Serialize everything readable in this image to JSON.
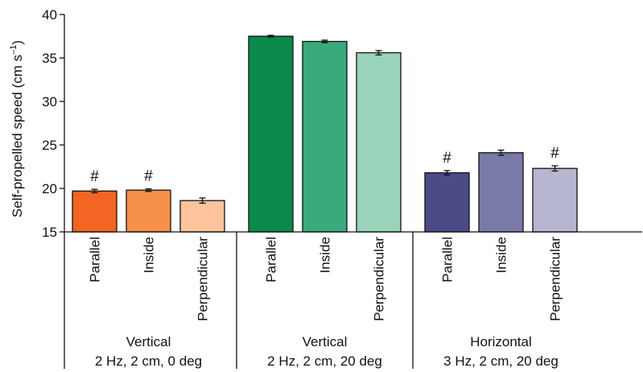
{
  "chart_data": {
    "type": "bar",
    "ylabel": "Self-propelled speed (cm s",
    "ylabel_sup": "–1",
    "ylabel_close": ")",
    "ylim": [
      15,
      40
    ],
    "yticks": [
      15,
      20,
      25,
      30,
      35,
      40
    ],
    "annotation_symbol": "#",
    "groups": [
      {
        "label_line1": "Vertical",
        "label_line2": "2 Hz, 2 cm, 0 deg",
        "bars": [
          {
            "category": "Parallel",
            "value": 19.7,
            "error": 0.2,
            "color": "#f26522",
            "marked": true
          },
          {
            "category": "Inside",
            "value": 19.8,
            "error": 0.15,
            "color": "#f7904a",
            "marked": true
          },
          {
            "category": "Perpendicular",
            "value": 18.6,
            "error": 0.3,
            "color": "#fbc49a",
            "marked": false
          }
        ]
      },
      {
        "label_line1": "Vertical",
        "label_line2": "2 Hz, 2 cm, 20 deg",
        "bars": [
          {
            "category": "Parallel",
            "value": 37.5,
            "error": 0.1,
            "color": "#0a8a4a",
            "marked": false
          },
          {
            "category": "Inside",
            "value": 36.9,
            "error": 0.15,
            "color": "#3aaa7c",
            "marked": false
          },
          {
            "category": "Perpendicular",
            "value": 35.6,
            "error": 0.25,
            "color": "#99d3b9",
            "marked": false
          }
        ]
      },
      {
        "label_line1": "Horizontal",
        "label_line2": "3 Hz, 2 cm, 20 deg",
        "bars": [
          {
            "category": "Parallel",
            "value": 21.8,
            "error": 0.25,
            "color": "#4b4b87",
            "marked": true
          },
          {
            "category": "Inside",
            "value": 24.1,
            "error": 0.3,
            "color": "#7a7aa8",
            "marked": false
          },
          {
            "category": "Perpendicular",
            "value": 22.3,
            "error": 0.3,
            "color": "#b6b6d0",
            "marked": true
          }
        ]
      }
    ]
  }
}
